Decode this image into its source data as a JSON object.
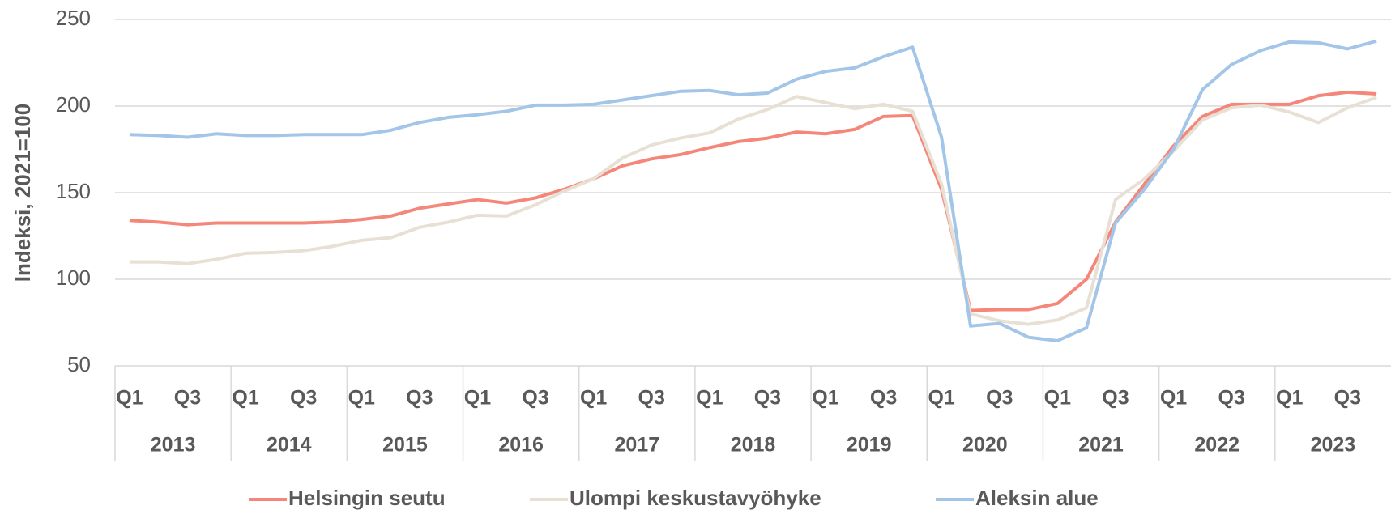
{
  "chart_data": {
    "type": "line",
    "y_label": "Indeksi, 2021=100",
    "categories": [
      "Q1",
      null,
      "Q3",
      null,
      "Q1",
      null,
      "Q3",
      null,
      "Q1",
      null,
      "Q3",
      null,
      "Q1",
      null,
      "Q3",
      null,
      "Q1",
      null,
      "Q3",
      null,
      "Q1",
      null,
      "Q3",
      null,
      "Q1",
      null,
      "Q3",
      null,
      "Q1",
      null,
      "Q3",
      null,
      "Q1",
      null,
      "Q3",
      null,
      "Q1",
      null,
      "Q3",
      null,
      "Q1",
      null,
      "Q3",
      null
    ],
    "years": [
      "2013",
      "2014",
      "2015",
      "2016",
      "2017",
      "2018",
      "2019",
      "2020",
      "2021",
      "2022",
      "2023"
    ],
    "ylim": [
      50,
      250
    ],
    "yticks": [
      50,
      100,
      150,
      200,
      250
    ],
    "grid": true,
    "legend": "bottom",
    "series": [
      {
        "name": "Helsingin seutu",
        "color": "#f4877a",
        "values": [
          134,
          133,
          131.5,
          132.5,
          132.5,
          132.5,
          132.5,
          133,
          134.5,
          136.5,
          141,
          143.5,
          146,
          144,
          147,
          152,
          158,
          165.5,
          169.5,
          172,
          176,
          179.5,
          181.5,
          185,
          184,
          186.5,
          194,
          194.5,
          152,
          82,
          82.5,
          82.5,
          86,
          100,
          133,
          155,
          177,
          194,
          201,
          201,
          201,
          206,
          208,
          207
        ]
      },
      {
        "name": "Ulompi keskustavyöhyke",
        "color": "#e8e0d4",
        "values": [
          110,
          110,
          109,
          111.5,
          115,
          115.5,
          116.5,
          119,
          122.5,
          124,
          130,
          133,
          137,
          136.5,
          143,
          151,
          158,
          170,
          177.5,
          181.5,
          184.5,
          192.5,
          198,
          205.5,
          202,
          198.5,
          201,
          197,
          155,
          80,
          76,
          74,
          76.5,
          83.5,
          146,
          158,
          174,
          192,
          199,
          200.5,
          196.5,
          190.5,
          199,
          205
        ]
      },
      {
        "name": "Aleksin alue",
        "color": "#a3c6e8",
        "values": [
          183.5,
          183,
          182,
          184,
          183,
          183,
          183.5,
          183.5,
          183.5,
          186,
          190.5,
          193.5,
          195,
          197,
          200.5,
          200.5,
          201,
          203.5,
          206,
          208.5,
          209,
          206.5,
          207.5,
          215.5,
          220,
          222,
          228.5,
          234,
          182,
          73,
          74.5,
          66.5,
          64.5,
          72,
          132.5,
          152,
          175,
          209.5,
          224,
          232,
          237,
          236.5,
          233,
          237.5
        ]
      }
    ]
  }
}
